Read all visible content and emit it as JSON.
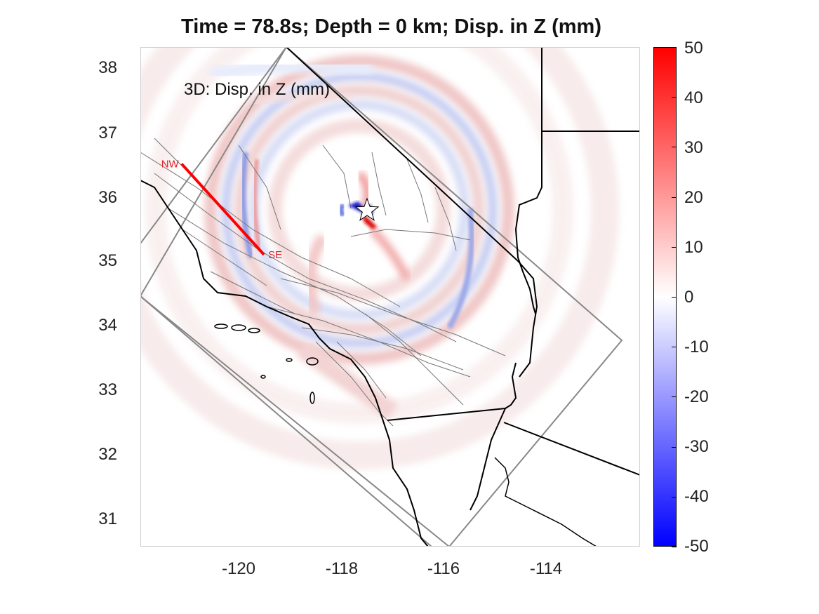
{
  "title": "Time = 78.8s; Depth = 0 km; Disp. in Z (mm)",
  "annotation": "3D: Disp. in Z (mm)",
  "profile": {
    "start_label": "NW",
    "end_label": "SE",
    "start": [
      -121.2,
      36.5
    ],
    "end": [
      -119.6,
      35.1
    ]
  },
  "epicenter": {
    "lon": -117.6,
    "lat": 35.78,
    "icon": "star-icon"
  },
  "axes": {
    "xlim": [
      -122,
      -112.3
    ],
    "ylim": [
      30.6,
      38.3
    ],
    "xticks": [
      "-120",
      "-118",
      "-116",
      "-114"
    ],
    "yticks": [
      "38",
      "37",
      "36",
      "35",
      "34",
      "33",
      "32",
      "31"
    ]
  },
  "colorbar": {
    "range": [
      -50,
      50
    ],
    "ticks": [
      "50",
      "40",
      "30",
      "20",
      "10",
      "0",
      "-10",
      "-20",
      "-30",
      "-40",
      "-50"
    ],
    "colors": {
      "max": "#ff0000",
      "mid": "#ffffff",
      "min": "#0000ff"
    }
  }
}
